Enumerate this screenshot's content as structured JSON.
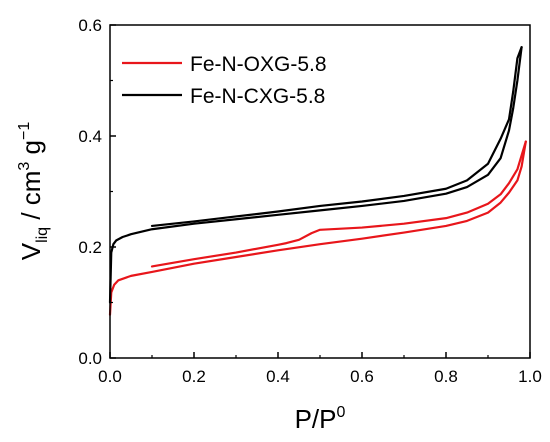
{
  "chart_data": {
    "type": "line",
    "title": "",
    "xlabel": {
      "base": "P/P",
      "sup": "0"
    },
    "ylabel": {
      "v": "V",
      "v_sub": "liq",
      "mid": " / cm",
      "mid_sup": "3",
      "g": " g",
      "g_sup": "−1"
    },
    "xlim": [
      0.0,
      1.0
    ],
    "ylim": [
      0.0,
      0.6
    ],
    "xticks": [
      0.0,
      0.2,
      0.4,
      0.6,
      0.8,
      1.0
    ],
    "yticks": [
      0.0,
      0.2,
      0.4,
      0.6
    ],
    "xtick_labels": [
      "0.0",
      "0.2",
      "0.4",
      "0.6",
      "0.8",
      "1.0"
    ],
    "ytick_labels": [
      "0.0",
      "0.2",
      "0.4",
      "0.6"
    ],
    "grid": false,
    "legend_position": "top-left",
    "series": [
      {
        "name": "Fe-N-OXG-5.8",
        "color": "#e8161b",
        "adsorption": {
          "x": [
            0.0,
            0.003,
            0.01,
            0.02,
            0.05,
            0.1,
            0.2,
            0.3,
            0.4,
            0.5,
            0.6,
            0.7,
            0.8,
            0.85,
            0.9,
            0.93,
            0.95,
            0.97,
            0.98,
            0.99
          ],
          "y": [
            0.078,
            0.118,
            0.132,
            0.14,
            0.148,
            0.155,
            0.17,
            0.182,
            0.194,
            0.205,
            0.215,
            0.226,
            0.238,
            0.247,
            0.262,
            0.28,
            0.298,
            0.32,
            0.345,
            0.39
          ]
        },
        "desorption": {
          "x": [
            0.99,
            0.98,
            0.97,
            0.95,
            0.93,
            0.9,
            0.85,
            0.8,
            0.7,
            0.6,
            0.5,
            0.48,
            0.45,
            0.42,
            0.4,
            0.3,
            0.2,
            0.1
          ],
          "y": [
            0.39,
            0.365,
            0.34,
            0.315,
            0.295,
            0.278,
            0.262,
            0.252,
            0.242,
            0.235,
            0.231,
            0.225,
            0.213,
            0.207,
            0.204,
            0.19,
            0.178,
            0.165
          ]
        }
      },
      {
        "name": "Fe-N-CXG-5.8",
        "color": "#000000",
        "adsorption": {
          "x": [
            0.0,
            0.003,
            0.008,
            0.015,
            0.03,
            0.05,
            0.1,
            0.2,
            0.3,
            0.4,
            0.5,
            0.6,
            0.7,
            0.8,
            0.85,
            0.9,
            0.93,
            0.95,
            0.96,
            0.97,
            0.98
          ],
          "y": [
            0.1,
            0.19,
            0.205,
            0.212,
            0.218,
            0.223,
            0.232,
            0.242,
            0.25,
            0.258,
            0.266,
            0.274,
            0.283,
            0.296,
            0.308,
            0.33,
            0.36,
            0.41,
            0.45,
            0.5,
            0.56
          ]
        },
        "desorption": {
          "x": [
            0.98,
            0.97,
            0.96,
            0.95,
            0.93,
            0.9,
            0.85,
            0.8,
            0.7,
            0.6,
            0.5,
            0.4,
            0.3,
            0.2,
            0.1
          ],
          "y": [
            0.56,
            0.54,
            0.48,
            0.43,
            0.395,
            0.35,
            0.32,
            0.305,
            0.292,
            0.282,
            0.274,
            0.264,
            0.255,
            0.246,
            0.238
          ]
        }
      }
    ]
  }
}
